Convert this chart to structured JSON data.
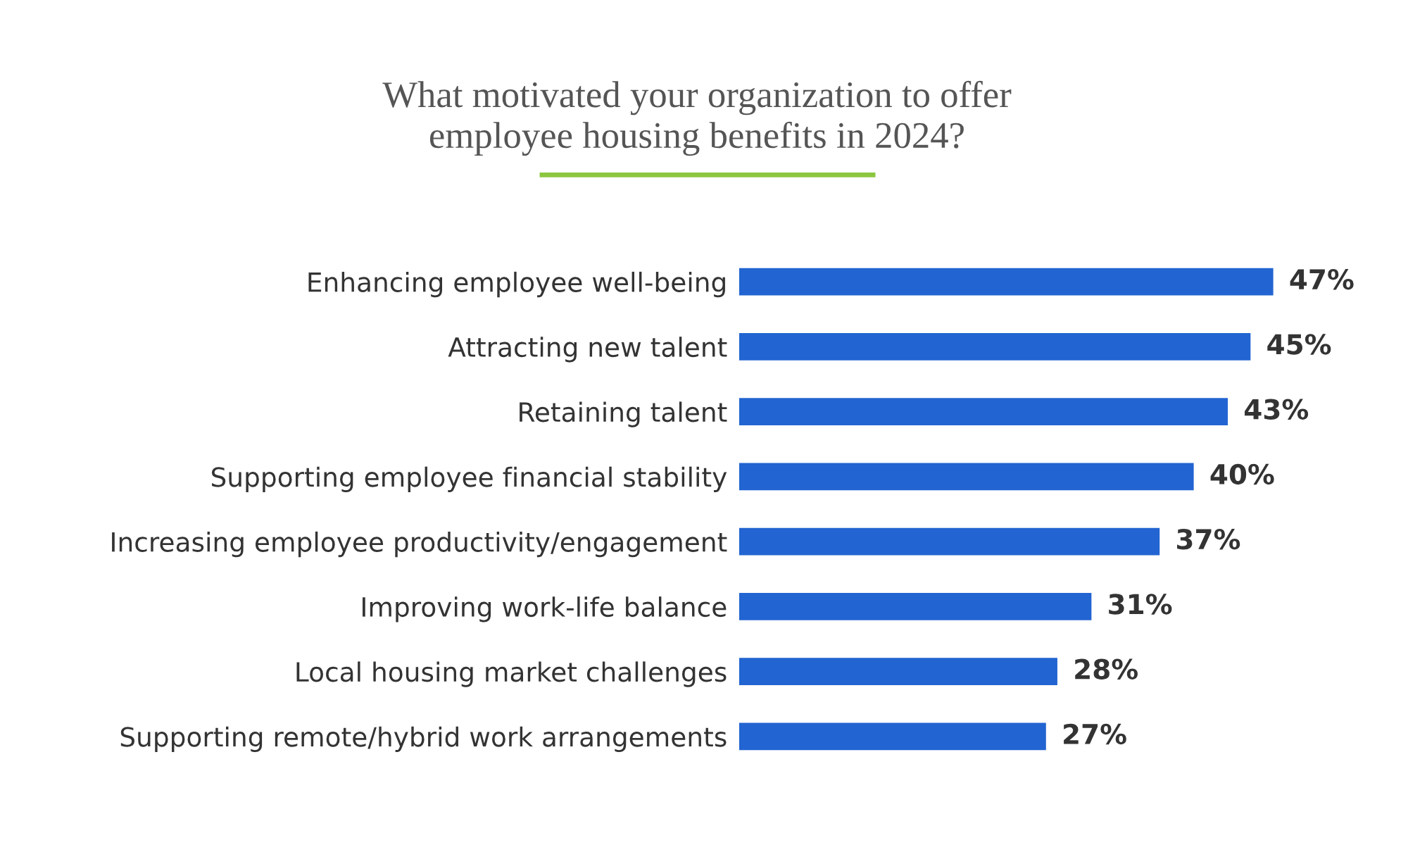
{
  "chart_data": {
    "type": "bar",
    "orientation": "horizontal",
    "title": "What motivated your organization to offer\nemployee housing benefits in 2024?",
    "categories": [
      "Enhancing employee well-being",
      "Attracting new talent",
      "Retaining talent",
      "Supporting employee financial stability",
      "Increasing employee productivity/engagement",
      "Improving work-life balance",
      "Local housing market challenges",
      "Supporting remote/hybrid work arrangements"
    ],
    "values": [
      47,
      45,
      43,
      40,
      37,
      31,
      28,
      27
    ],
    "value_labels": [
      "47%",
      "45%",
      "43%",
      "40%",
      "37%",
      "31%",
      "28%",
      "27%"
    ],
    "color": "#2264d1",
    "grid": false,
    "legend": false
  }
}
